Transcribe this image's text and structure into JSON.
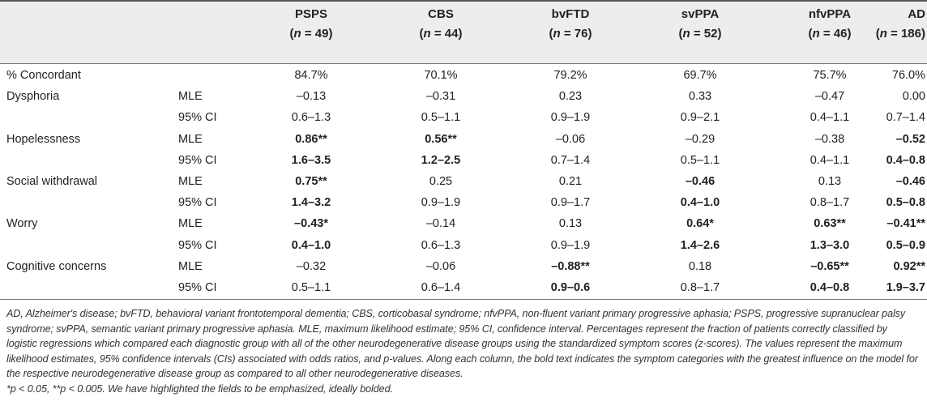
{
  "columns": [
    {
      "name": "PSPS",
      "n_prefix": "(",
      "n_italic": "n",
      "n_suffix": " = 49)"
    },
    {
      "name": "CBS",
      "n_prefix": "(",
      "n_italic": "n",
      "n_suffix": " = 44)"
    },
    {
      "name": "bvFTD",
      "n_prefix": "(",
      "n_italic": "n",
      "n_suffix": " = 76)"
    },
    {
      "name": "svPPA",
      "n_prefix": "(",
      "n_italic": "n",
      "n_suffix": " = 52)"
    },
    {
      "name": "nfvPPA",
      "n_prefix": "(",
      "n_italic": "n",
      "n_suffix": " = 46)"
    },
    {
      "name": "AD",
      "n_prefix": "(",
      "n_italic": "n",
      "n_suffix": " = 186)"
    }
  ],
  "rows": [
    {
      "label": "% Concordant",
      "measure": "",
      "values": [
        {
          "t": "84.7%",
          "b": false
        },
        {
          "t": "70.1%",
          "b": false
        },
        {
          "t": "79.2%",
          "b": false
        },
        {
          "t": "69.7%",
          "b": false
        },
        {
          "t": "75.7%",
          "b": false
        },
        {
          "t": "76.0%",
          "b": false
        }
      ]
    },
    {
      "label": "Dysphoria",
      "measure": "MLE",
      "values": [
        {
          "t": "–0.13",
          "b": false
        },
        {
          "t": "–0.31",
          "b": false
        },
        {
          "t": "0.23",
          "b": false
        },
        {
          "t": "0.33",
          "b": false
        },
        {
          "t": "–0.47",
          "b": false
        },
        {
          "t": "0.00",
          "b": false
        }
      ]
    },
    {
      "label": "",
      "measure": "95% CI",
      "values": [
        {
          "t": "0.6–1.3",
          "b": false
        },
        {
          "t": "0.5–1.1",
          "b": false
        },
        {
          "t": "0.9–1.9",
          "b": false
        },
        {
          "t": "0.9–2.1",
          "b": false
        },
        {
          "t": "0.4–1.1",
          "b": false
        },
        {
          "t": "0.7–1.4",
          "b": false
        }
      ]
    },
    {
      "label": "Hopelessness",
      "measure": "MLE",
      "values": [
        {
          "t": "0.86**",
          "b": true
        },
        {
          "t": "0.56**",
          "b": true
        },
        {
          "t": "–0.06",
          "b": false
        },
        {
          "t": "–0.29",
          "b": false
        },
        {
          "t": "–0.38",
          "b": false
        },
        {
          "t": "–0.52",
          "b": true
        }
      ]
    },
    {
      "label": "",
      "measure": "95% CI",
      "values": [
        {
          "t": "1.6–3.5",
          "b": true
        },
        {
          "t": "1.2–2.5",
          "b": true
        },
        {
          "t": "0.7–1.4",
          "b": false
        },
        {
          "t": "0.5–1.1",
          "b": false
        },
        {
          "t": "0.4–1.1",
          "b": false
        },
        {
          "t": "0.4–0.8",
          "b": true
        }
      ]
    },
    {
      "label": "Social withdrawal",
      "measure": "MLE",
      "values": [
        {
          "t": "0.75**",
          "b": true
        },
        {
          "t": "0.25",
          "b": false
        },
        {
          "t": "0.21",
          "b": false
        },
        {
          "t": "–0.46",
          "b": true
        },
        {
          "t": "0.13",
          "b": false
        },
        {
          "t": "–0.46",
          "b": true
        }
      ]
    },
    {
      "label": "",
      "measure": "95% CI",
      "values": [
        {
          "t": "1.4–3.2",
          "b": true
        },
        {
          "t": "0.9–1.9",
          "b": false
        },
        {
          "t": "0.9–1.7",
          "b": false
        },
        {
          "t": "0.4–1.0",
          "b": true
        },
        {
          "t": "0.8–1.7",
          "b": false
        },
        {
          "t": "0.5–0.8",
          "b": true
        }
      ]
    },
    {
      "label": "Worry",
      "measure": "MLE",
      "values": [
        {
          "t": "–0.43*",
          "b": true
        },
        {
          "t": "–0.14",
          "b": false
        },
        {
          "t": "0.13",
          "b": false
        },
        {
          "t": "0.64*",
          "b": true
        },
        {
          "t": "0.63**",
          "b": true
        },
        {
          "t": "–0.41**",
          "b": true
        }
      ]
    },
    {
      "label": "",
      "measure": "95% CI",
      "values": [
        {
          "t": "0.4–1.0",
          "b": true
        },
        {
          "t": "0.6–1.3",
          "b": false
        },
        {
          "t": "0.9–1.9",
          "b": false
        },
        {
          "t": "1.4–2.6",
          "b": true
        },
        {
          "t": "1.3–3.0",
          "b": true
        },
        {
          "t": "0.5–0.9",
          "b": true
        }
      ]
    },
    {
      "label": "Cognitive concerns",
      "measure": "MLE",
      "values": [
        {
          "t": "–0.32",
          "b": false
        },
        {
          "t": "–0.06",
          "b": false
        },
        {
          "t": "–0.88**",
          "b": true
        },
        {
          "t": "0.18",
          "b": false
        },
        {
          "t": "–0.65**",
          "b": true
        },
        {
          "t": "0.92**",
          "b": true
        }
      ]
    },
    {
      "label": "",
      "measure": "95% CI",
      "values": [
        {
          "t": "0.5–1.1",
          "b": false
        },
        {
          "t": "0.6–1.4",
          "b": false
        },
        {
          "t": "0.9–0.6",
          "b": true
        },
        {
          "t": "0.8–1.7",
          "b": false
        },
        {
          "t": "0.4–0.8",
          "b": true
        },
        {
          "t": "1.9–3.7",
          "b": true
        }
      ]
    }
  ],
  "footnote": {
    "main": "AD, Alzheimer's disease; bvFTD, behavioral variant frontotemporal dementia; CBS, corticobasal syndrome; nfvPPA, non-fluent variant primary progressive aphasia; PSPS, progressive supranuclear palsy syndrome; svPPA, semantic variant primary progressive aphasia. MLE, maximum likelihood estimate; 95% CI, confidence interval. Percentages represent the fraction of patients correctly classified by logistic regressions which compared each diagnostic group with all of the other neurodegenerative disease groups using the standardized symptom scores (z-scores). The values represent the maximum likelihood estimates, 95% confidence intervals (CIs) associated with odds ratios, and p-values. Along each column, the bold text indicates the symptom categories with the greatest influence on the model for the respective neurodegenerative disease group as compared to all other neurodegenerative diseases.",
    "significance": "*p < 0.05, **p < 0.005. We have highlighted the fields to be emphasized, ideally bolded."
  }
}
